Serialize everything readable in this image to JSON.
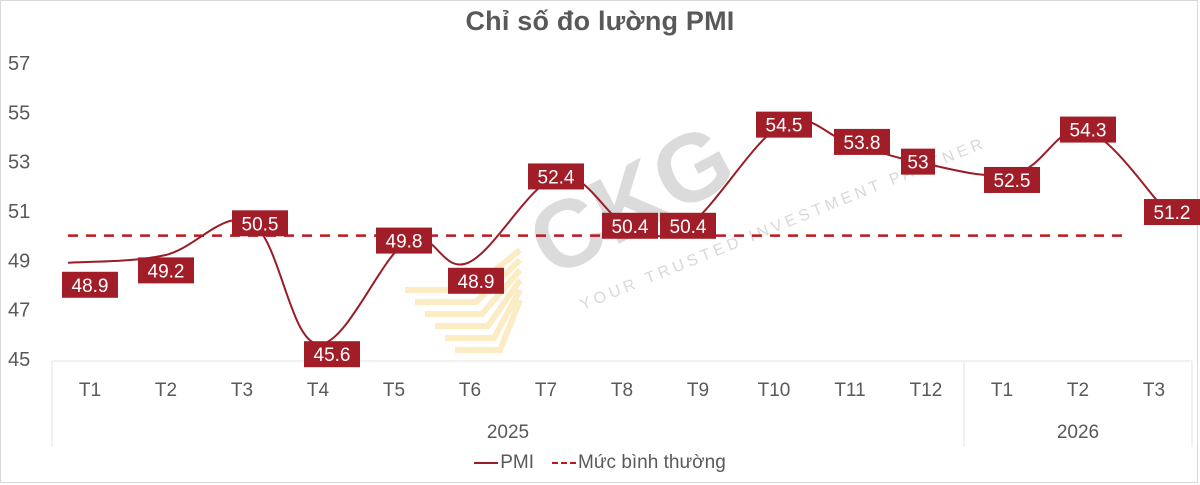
{
  "chart_data": {
    "type": "line",
    "title": "Chỉ số đo lường PMI",
    "xlabel": "",
    "ylabel": "",
    "ylim": [
      45,
      57
    ],
    "yticks": [
      45,
      47,
      49,
      51,
      53,
      55,
      57
    ],
    "grid": false,
    "legend_position": "bottom",
    "categories": [
      "T1",
      "T2",
      "T3",
      "T4",
      "T5",
      "T6",
      "T7",
      "T8",
      "T9",
      "T10",
      "T11",
      "T12",
      "T1",
      "T2",
      "T3"
    ],
    "category_groups": [
      {
        "label": "2025",
        "start": 0,
        "end": 11
      },
      {
        "label": "2026",
        "start": 12,
        "end": 14
      }
    ],
    "series": [
      {
        "name": "PMI",
        "style": "solid-smooth",
        "color": "#9b1c26",
        "values": [
          48.9,
          49.2,
          50.5,
          45.6,
          49.8,
          48.9,
          52.4,
          50.4,
          50.4,
          54.5,
          53.8,
          53,
          52.5,
          54.3,
          51.2
        ],
        "labels": [
          "48.9",
          "49.2",
          "50.5",
          "45.6",
          "49.8",
          "48.9",
          "52.4",
          "50.4",
          "50.4",
          "54.5",
          "53.8",
          "53",
          "52.5",
          "54.3",
          "51.2"
        ]
      },
      {
        "name": "Mức bình thường",
        "style": "dashed",
        "color": "#c0161f",
        "values": [
          50,
          50,
          50,
          50,
          50,
          50,
          50,
          50,
          50,
          50,
          50,
          50,
          50,
          50,
          50
        ]
      }
    ]
  },
  "legend": {
    "pmi_label": "PMI",
    "normal_label": "Mức bình thường"
  },
  "watermark": {
    "brand": "CKG",
    "tagline": "YOUR TRUSTED INVESTMENT PARTNER"
  },
  "colors": {
    "line": "#9b1c26",
    "label_bg": "#a11d28",
    "dashed": "#c0161f",
    "text": "#595959"
  }
}
